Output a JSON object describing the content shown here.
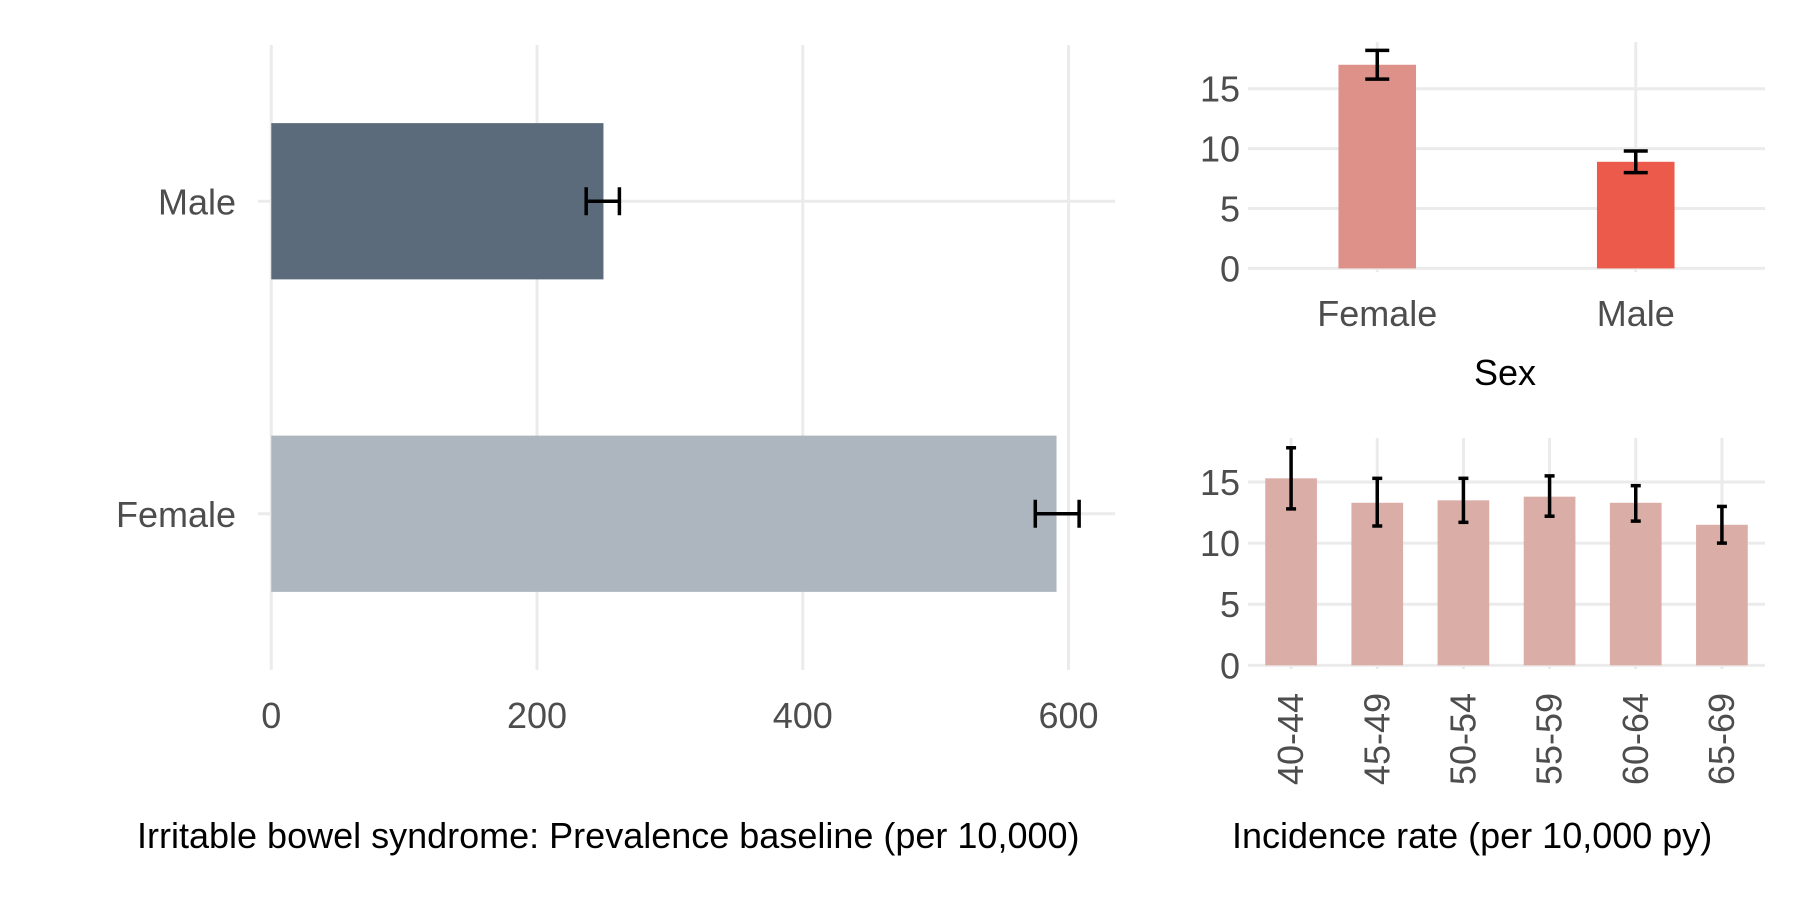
{
  "chart_data": [
    {
      "type": "bar",
      "orientation": "horizontal",
      "categories": [
        "Male",
        "Female"
      ],
      "values": [
        250,
        591
      ],
      "error_low": [
        237,
        575
      ],
      "error_high": [
        262,
        608
      ],
      "colors": [
        "#5c6b7b",
        "#adb5bf"
      ],
      "xlabel": "Irritable bowel syndrome: Prevalence baseline (per 10,000)",
      "ylabel": "",
      "xlim": [
        -10,
        635
      ],
      "xticks": [
        "0",
        "200",
        "400",
        "600"
      ],
      "grid": true
    },
    {
      "type": "bar",
      "categories": [
        "Female",
        "Male"
      ],
      "values": [
        17.0,
        8.9
      ],
      "error_low": [
        15.8,
        8.0
      ],
      "error_high": [
        18.2,
        9.8
      ],
      "colors": [
        "#dd9189",
        "#ec5a4b"
      ],
      "xlabel": "Sex",
      "ylabel": "",
      "ylim": [
        -0.3,
        18.9
      ],
      "yticks": [
        "0",
        "5",
        "10",
        "15"
      ],
      "grid": true
    },
    {
      "type": "bar",
      "categories": [
        "40-44",
        "45-49",
        "50-54",
        "55-59",
        "60-64",
        "65-69"
      ],
      "values": [
        15.3,
        13.3,
        13.5,
        13.8,
        13.3,
        11.5
      ],
      "error_low": [
        12.8,
        11.4,
        11.7,
        12.2,
        11.8,
        10.0
      ],
      "error_high": [
        17.8,
        15.3,
        15.3,
        15.5,
        14.7,
        13.0
      ],
      "colors": [
        "#dbada7"
      ],
      "xlabel": "Incidence rate (per 10,000 py)",
      "ylabel": "",
      "ylim": [
        -0.3,
        18.6
      ],
      "yticks": [
        "0",
        "5",
        "10",
        "15"
      ],
      "grid": true
    }
  ]
}
